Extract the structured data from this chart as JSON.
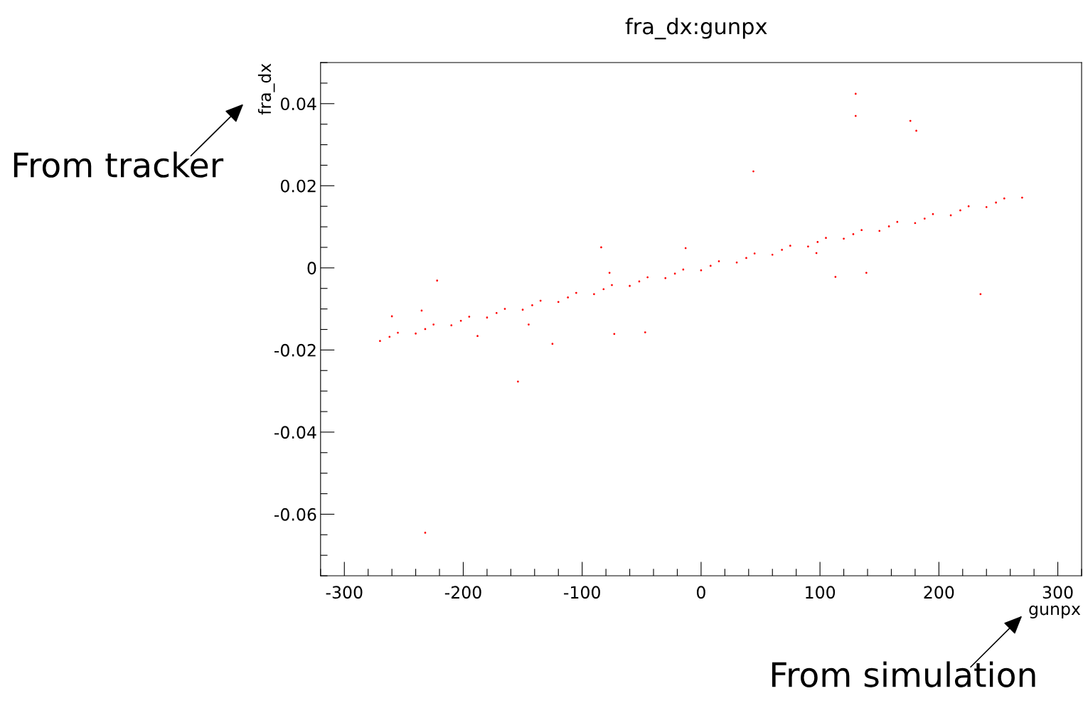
{
  "chart_data": {
    "type": "scatter",
    "title": "fra_dx:gunpx",
    "xlabel": "gunpx",
    "ylabel": "fra_dx",
    "annotations": [
      "From tracker",
      "From simulation"
    ],
    "marker": "circle",
    "grid": false,
    "legend": false,
    "xlim": [
      -320,
      320
    ],
    "ylim": [
      -0.075,
      0.05
    ],
    "xticks": [
      {
        "value": -320,
        "label": null
      },
      -300,
      {
        "value": -280,
        "label": null
      },
      {
        "value": -260,
        "label": null
      },
      {
        "value": -240,
        "label": null
      },
      {
        "value": -220,
        "label": null
      },
      -200,
      {
        "value": -180,
        "label": null
      },
      {
        "value": -160,
        "label": null
      },
      {
        "value": -140,
        "label": null
      },
      {
        "value": -120,
        "label": null
      },
      -100,
      {
        "value": -80,
        "label": null
      },
      {
        "value": -60,
        "label": null
      },
      {
        "value": -40,
        "label": null
      },
      {
        "value": -20,
        "label": null
      },
      0,
      {
        "value": 20,
        "label": null
      },
      {
        "value": 40,
        "label": null
      },
      {
        "value": 60,
        "label": null
      },
      {
        "value": 80,
        "label": null
      },
      100,
      {
        "value": 120,
        "label": null
      },
      {
        "value": 140,
        "label": null
      },
      {
        "value": 160,
        "label": null
      },
      {
        "value": 180,
        "label": null
      },
      200,
      {
        "value": 220,
        "label": null
      },
      {
        "value": 240,
        "label": null
      },
      {
        "value": 260,
        "label": null
      },
      {
        "value": 280,
        "label": null
      },
      300,
      {
        "value": 320,
        "label": null
      }
    ],
    "yticks": [
      {
        "value": -0.075,
        "label": null
      },
      {
        "value": -0.07,
        "label": null
      },
      {
        "value": -0.065,
        "label": null
      },
      -0.06,
      {
        "value": -0.055,
        "label": null
      },
      {
        "value": -0.05,
        "label": null
      },
      {
        "value": -0.045,
        "label": null
      },
      -0.04,
      {
        "value": -0.035,
        "label": null
      },
      {
        "value": -0.03,
        "label": null
      },
      {
        "value": -0.025,
        "label": null
      },
      -0.02,
      {
        "value": -0.015,
        "label": null
      },
      {
        "value": -0.01,
        "label": null
      },
      {
        "value": -0.005,
        "label": null
      },
      0,
      {
        "value": 0.005,
        "label": null
      },
      {
        "value": 0.01,
        "label": null
      },
      {
        "value": 0.015,
        "label": null
      },
      0.02,
      {
        "value": 0.025,
        "label": null
      },
      {
        "value": 0.03,
        "label": null
      },
      {
        "value": 0.035,
        "label": null
      },
      0.04,
      {
        "value": 0.045,
        "label": null
      },
      {
        "value": 0.05,
        "label": null
      }
    ],
    "series": [
      {
        "color": "#ff0000",
        "x": [
          -270,
          -255,
          -240,
          -225,
          -210,
          -195,
          -180,
          -165,
          -150,
          -135,
          -120,
          -105,
          -90,
          -75,
          -60,
          -45,
          -30,
          -15,
          0,
          15,
          30,
          45,
          60,
          75,
          90,
          105,
          120,
          135,
          150,
          165,
          180,
          195,
          210,
          225,
          240,
          255,
          270,
          -262,
          -232,
          -202,
          -172,
          -142,
          -112,
          -82,
          -52,
          -22,
          8,
          38,
          68,
          98,
          128,
          158,
          188,
          218,
          248,
          130,
          130,
          176,
          181,
          44,
          -222,
          -260,
          -235,
          -84,
          -13,
          113,
          139,
          235,
          -125,
          -154,
          -232,
          -73,
          -47,
          -145,
          -188,
          97,
          -77
        ],
        "values": [
          -0.0178,
          -0.0158,
          -0.016,
          -0.0138,
          -0.014,
          -0.0119,
          -0.0121,
          -0.01,
          -0.0102,
          -0.008,
          -0.0083,
          -0.0061,
          -0.0064,
          -0.0042,
          -0.0044,
          -0.0023,
          -0.0025,
          -0.0004,
          -0.0006,
          0.0016,
          0.0013,
          0.0035,
          0.0032,
          0.0054,
          0.0052,
          0.0073,
          0.0071,
          0.0092,
          0.009,
          0.0112,
          0.0109,
          0.0131,
          0.0128,
          0.015,
          0.0148,
          0.0169,
          0.0171,
          -0.0168,
          -0.0149,
          -0.0129,
          -0.011,
          -0.0091,
          -0.0072,
          -0.0052,
          -0.0033,
          -0.0014,
          0.0005,
          0.0024,
          0.0044,
          0.0063,
          0.0082,
          0.0101,
          0.012,
          0.014,
          0.0159,
          0.0424,
          0.037,
          0.0358,
          0.0334,
          0.0235,
          -0.0031,
          -0.0118,
          -0.0104,
          0.005,
          0.0048,
          -0.0022,
          -0.0012,
          -0.0064,
          -0.0185,
          -0.0277,
          -0.0645,
          -0.0161,
          -0.0157,
          -0.0138,
          -0.0166,
          0.0036,
          -0.0012
        ]
      }
    ]
  }
}
